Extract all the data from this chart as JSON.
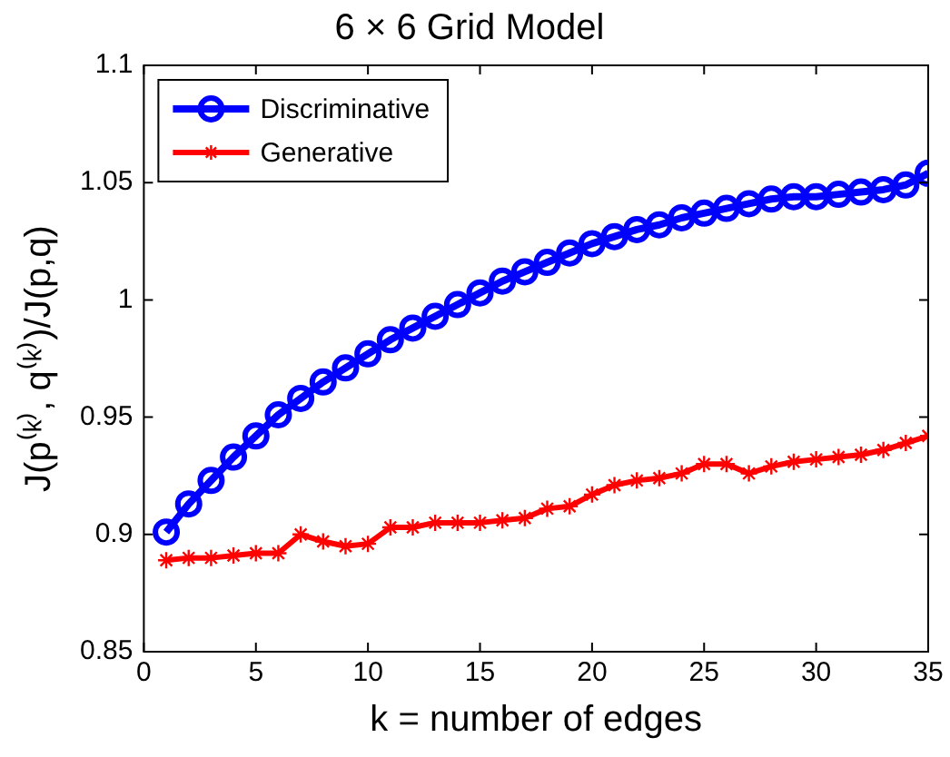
{
  "chart_data": {
    "type": "line",
    "title": "6 × 6 Grid Model",
    "xlabel": "k = number of edges",
    "ylabel": "J(p⁽ᵏ⁾, q⁽ᵏ⁾)/J(p,q)",
    "x": [
      1,
      2,
      3,
      4,
      5,
      6,
      7,
      8,
      9,
      10,
      11,
      12,
      13,
      14,
      15,
      16,
      17,
      18,
      19,
      20,
      21,
      22,
      23,
      24,
      25,
      26,
      27,
      28,
      29,
      30,
      31,
      32,
      33,
      34,
      35
    ],
    "series": [
      {
        "name": "Discriminative",
        "color": "#0000ff",
        "marker": "circle",
        "values": [
          0.901,
          0.913,
          0.923,
          0.933,
          0.942,
          0.951,
          0.958,
          0.965,
          0.971,
          0.977,
          0.983,
          0.988,
          0.993,
          0.998,
          1.003,
          1.008,
          1.012,
          1.016,
          1.02,
          1.024,
          1.027,
          1.03,
          1.032,
          1.035,
          1.037,
          1.039,
          1.041,
          1.043,
          1.044,
          1.044,
          1.045,
          1.046,
          1.047,
          1.049,
          1.054
        ]
      },
      {
        "name": "Generative",
        "color": "#ff0000",
        "marker": "cross",
        "values": [
          0.889,
          0.89,
          0.89,
          0.891,
          0.892,
          0.892,
          0.9,
          0.897,
          0.895,
          0.896,
          0.903,
          0.903,
          0.905,
          0.905,
          0.905,
          0.906,
          0.907,
          0.911,
          0.912,
          0.917,
          0.921,
          0.923,
          0.924,
          0.926,
          0.93,
          0.93,
          0.926,
          0.929,
          0.931,
          0.932,
          0.933,
          0.934,
          0.936,
          0.939,
          0.942
        ]
      }
    ],
    "xlim": [
      0,
      35
    ],
    "xticks": [
      0,
      5,
      10,
      15,
      20,
      25,
      30,
      35
    ],
    "ylim": [
      0.85,
      1.1
    ],
    "yticks": [
      0.85,
      0.9,
      0.95,
      1,
      1.05,
      1.1
    ],
    "grid": false,
    "legend": "top left",
    "line_style": "solid"
  }
}
